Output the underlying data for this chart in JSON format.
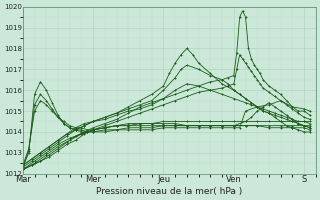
{
  "xlabel": "Pression niveau de la mer( hPa )",
  "ylim": [
    1012,
    1020
  ],
  "yticks": [
    1012,
    1013,
    1014,
    1015,
    1016,
    1017,
    1018,
    1019,
    1020
  ],
  "bg_color": "#cce8d8",
  "grid_major_color": "#aacfba",
  "grid_minor_color": "#bbdeca",
  "line_color": "#1a5c1a",
  "xtick_labels": [
    "Mar",
    "Mer",
    "Jeu",
    "Ven",
    "S"
  ],
  "xtick_positions": [
    0,
    48,
    96,
    144,
    192
  ],
  "xlim": [
    0,
    200
  ],
  "multi_series": [
    {
      "x": [
        0,
        6,
        12,
        18,
        24,
        30,
        36,
        42,
        48,
        56,
        64,
        72,
        80,
        88,
        96,
        104,
        112,
        120,
        128,
        136,
        140,
        144,
        146,
        148,
        150,
        152,
        154,
        156,
        158,
        160,
        162,
        164,
        168,
        172,
        176,
        180,
        184,
        188,
        192,
        196
      ],
      "y": [
        1012.2,
        1012.4,
        1012.6,
        1012.9,
        1013.2,
        1013.5,
        1013.8,
        1014.0,
        1014.2,
        1014.4,
        1014.6,
        1014.9,
        1015.2,
        1015.4,
        1015.6,
        1015.8,
        1016.0,
        1016.2,
        1016.4,
        1016.5,
        1016.6,
        1016.7,
        1017.8,
        1019.5,
        1019.8,
        1019.5,
        1018.0,
        1017.5,
        1017.2,
        1017.0,
        1016.8,
        1016.5,
        1016.2,
        1016.0,
        1015.8,
        1015.5,
        1015.2,
        1015.0,
        1015.0,
        1014.8
      ]
    },
    {
      "x": [
        0,
        6,
        12,
        18,
        24,
        30,
        36,
        42,
        48,
        56,
        64,
        72,
        80,
        88,
        96,
        104,
        112,
        120,
        128,
        136,
        140,
        144,
        146,
        148,
        150,
        152,
        154,
        156,
        158,
        160,
        162,
        164,
        168,
        172,
        176,
        180,
        184,
        188,
        192,
        196
      ],
      "y": [
        1012.2,
        1012.4,
        1012.6,
        1012.8,
        1013.1,
        1013.4,
        1013.6,
        1013.9,
        1014.1,
        1014.3,
        1014.5,
        1014.7,
        1014.9,
        1015.1,
        1015.3,
        1015.5,
        1015.7,
        1015.9,
        1016.0,
        1016.1,
        1016.2,
        1016.3,
        1017.0,
        1017.7,
        1017.5,
        1017.3,
        1017.1,
        1016.9,
        1016.7,
        1016.5,
        1016.3,
        1016.1,
        1015.9,
        1015.7,
        1015.5,
        1015.3,
        1015.1,
        1014.9,
        1014.7,
        1014.6
      ]
    },
    {
      "x": [
        0,
        6,
        12,
        18,
        24,
        30,
        36,
        42,
        48,
        56,
        64,
        72,
        80,
        88,
        96,
        100,
        104,
        108,
        112,
        116,
        120,
        128,
        136,
        144,
        148,
        152,
        156,
        160,
        164,
        168,
        172,
        176,
        180,
        184,
        188,
        192,
        196
      ],
      "y": [
        1012.3,
        1012.6,
        1012.9,
        1013.2,
        1013.5,
        1013.8,
        1014.1,
        1014.3,
        1014.5,
        1014.7,
        1014.9,
        1015.2,
        1015.5,
        1015.8,
        1016.2,
        1016.8,
        1017.3,
        1017.7,
        1018.0,
        1017.7,
        1017.3,
        1016.8,
        1016.3,
        1016.0,
        1015.8,
        1015.6,
        1015.4,
        1015.2,
        1015.0,
        1014.9,
        1014.7,
        1014.5,
        1014.3,
        1014.2,
        1014.1,
        1014.0,
        1014.0
      ]
    },
    {
      "x": [
        0,
        6,
        12,
        18,
        24,
        30,
        36,
        42,
        48,
        56,
        64,
        72,
        80,
        88,
        96,
        104,
        108,
        112,
        120,
        128,
        136,
        140,
        144,
        148,
        152,
        156,
        160,
        164,
        168,
        172,
        176,
        180,
        184,
        188,
        192,
        196
      ],
      "y": [
        1012.4,
        1012.7,
        1013.0,
        1013.3,
        1013.6,
        1013.9,
        1014.2,
        1014.4,
        1014.5,
        1014.7,
        1014.9,
        1015.1,
        1015.3,
        1015.5,
        1016.0,
        1016.6,
        1017.0,
        1017.2,
        1017.0,
        1016.7,
        1016.5,
        1016.3,
        1016.0,
        1015.8,
        1015.6,
        1015.4,
        1015.2,
        1015.0,
        1014.9,
        1014.8,
        1014.7,
        1014.6,
        1014.5,
        1014.4,
        1014.3,
        1014.2
      ]
    },
    {
      "x": [
        0,
        6,
        12,
        18,
        24,
        30,
        36,
        42,
        48,
        56,
        64,
        72,
        80,
        88,
        96,
        104,
        112,
        120,
        128,
        136,
        144,
        152,
        156,
        160,
        164,
        168,
        172,
        176,
        180,
        184,
        188,
        192,
        196
      ],
      "y": [
        1012.4,
        1012.7,
        1013.0,
        1013.3,
        1013.6,
        1013.9,
        1014.1,
        1014.3,
        1014.5,
        1014.6,
        1014.8,
        1015.0,
        1015.1,
        1015.3,
        1015.6,
        1016.0,
        1016.3,
        1016.2,
        1016.0,
        1015.8,
        1015.6,
        1015.4,
        1015.3,
        1015.2,
        1015.1,
        1015.0,
        1014.9,
        1014.8,
        1014.7,
        1014.6,
        1014.5,
        1014.5,
        1014.4
      ]
    },
    {
      "x": [
        0,
        4,
        8,
        12,
        16,
        20,
        24,
        28,
        32,
        36,
        40,
        44,
        48,
        56,
        64,
        72,
        80,
        88,
        96,
        104,
        112,
        120,
        128,
        136,
        144,
        152,
        160,
        168,
        176,
        184,
        192,
        196
      ],
      "y": [
        1012.4,
        1013.2,
        1015.0,
        1015.5,
        1015.3,
        1015.0,
        1014.7,
        1014.5,
        1014.3,
        1014.2,
        1014.2,
        1014.1,
        1014.1,
        1014.2,
        1014.3,
        1014.3,
        1014.4,
        1014.4,
        1014.5,
        1014.5,
        1014.5,
        1014.5,
        1014.5,
        1014.5,
        1014.5,
        1014.5,
        1014.5,
        1014.5,
        1014.5,
        1014.5,
        1014.5,
        1014.5
      ]
    },
    {
      "x": [
        0,
        4,
        8,
        12,
        16,
        20,
        24,
        28,
        32,
        36,
        40,
        44,
        48,
        56,
        64,
        72,
        80,
        88,
        96,
        104,
        112,
        120,
        128,
        136,
        144,
        152,
        160,
        168,
        176,
        184,
        192,
        196
      ],
      "y": [
        1012.3,
        1013.0,
        1015.8,
        1016.4,
        1016.0,
        1015.4,
        1014.8,
        1014.4,
        1014.2,
        1014.1,
        1014.1,
        1014.0,
        1014.0,
        1014.1,
        1014.1,
        1014.2,
        1014.2,
        1014.2,
        1014.3,
        1014.3,
        1014.3,
        1014.3,
        1014.3,
        1014.3,
        1014.3,
        1014.3,
        1014.3,
        1014.3,
        1014.3,
        1014.3,
        1014.3,
        1014.3
      ]
    },
    {
      "x": [
        0,
        4,
        8,
        12,
        16,
        20,
        24,
        28,
        32,
        36,
        40,
        44,
        48,
        56,
        64,
        72,
        80,
        88,
        96,
        104,
        112,
        120,
        128,
        136,
        144,
        148,
        152,
        160,
        168,
        176,
        184,
        192,
        196
      ],
      "y": [
        1012.3,
        1013.1,
        1015.3,
        1015.8,
        1015.5,
        1015.1,
        1014.7,
        1014.4,
        1014.2,
        1014.1,
        1014.0,
        1014.0,
        1014.0,
        1014.0,
        1014.1,
        1014.1,
        1014.1,
        1014.1,
        1014.2,
        1014.2,
        1014.2,
        1014.2,
        1014.2,
        1014.2,
        1014.2,
        1014.2,
        1015.0,
        1015.2,
        1015.3,
        1015.5,
        1015.2,
        1015.1,
        1015.0
      ]
    },
    {
      "x": [
        0,
        8,
        16,
        24,
        32,
        40,
        48,
        56,
        64,
        72,
        80,
        88,
        96,
        104,
        112,
        120,
        128,
        136,
        144,
        152,
        160,
        168,
        176,
        184,
        192,
        196
      ],
      "y": [
        1012.2,
        1012.6,
        1013.0,
        1013.4,
        1013.7,
        1013.9,
        1014.1,
        1014.2,
        1014.3,
        1014.4,
        1014.4,
        1014.4,
        1014.4,
        1014.4,
        1014.3,
        1014.3,
        1014.3,
        1014.3,
        1014.3,
        1014.3,
        1014.3,
        1014.2,
        1014.2,
        1014.2,
        1014.2,
        1014.1
      ]
    },
    {
      "x": [
        0,
        8,
        16,
        24,
        32,
        40,
        48,
        56,
        64,
        72,
        80,
        88,
        96,
        104,
        112,
        120,
        128,
        136,
        144,
        152,
        156,
        160,
        164,
        168,
        172,
        176,
        180,
        184,
        188,
        192,
        196
      ],
      "y": [
        1012.2,
        1012.5,
        1012.9,
        1013.3,
        1013.6,
        1013.9,
        1014.1,
        1014.2,
        1014.3,
        1014.3,
        1014.3,
        1014.3,
        1014.3,
        1014.3,
        1014.3,
        1014.3,
        1014.3,
        1014.3,
        1014.3,
        1014.5,
        1014.7,
        1015.0,
        1015.2,
        1015.4,
        1015.2,
        1015.0,
        1014.8,
        1014.6,
        1014.4,
        1014.3,
        1014.2
      ]
    }
  ]
}
